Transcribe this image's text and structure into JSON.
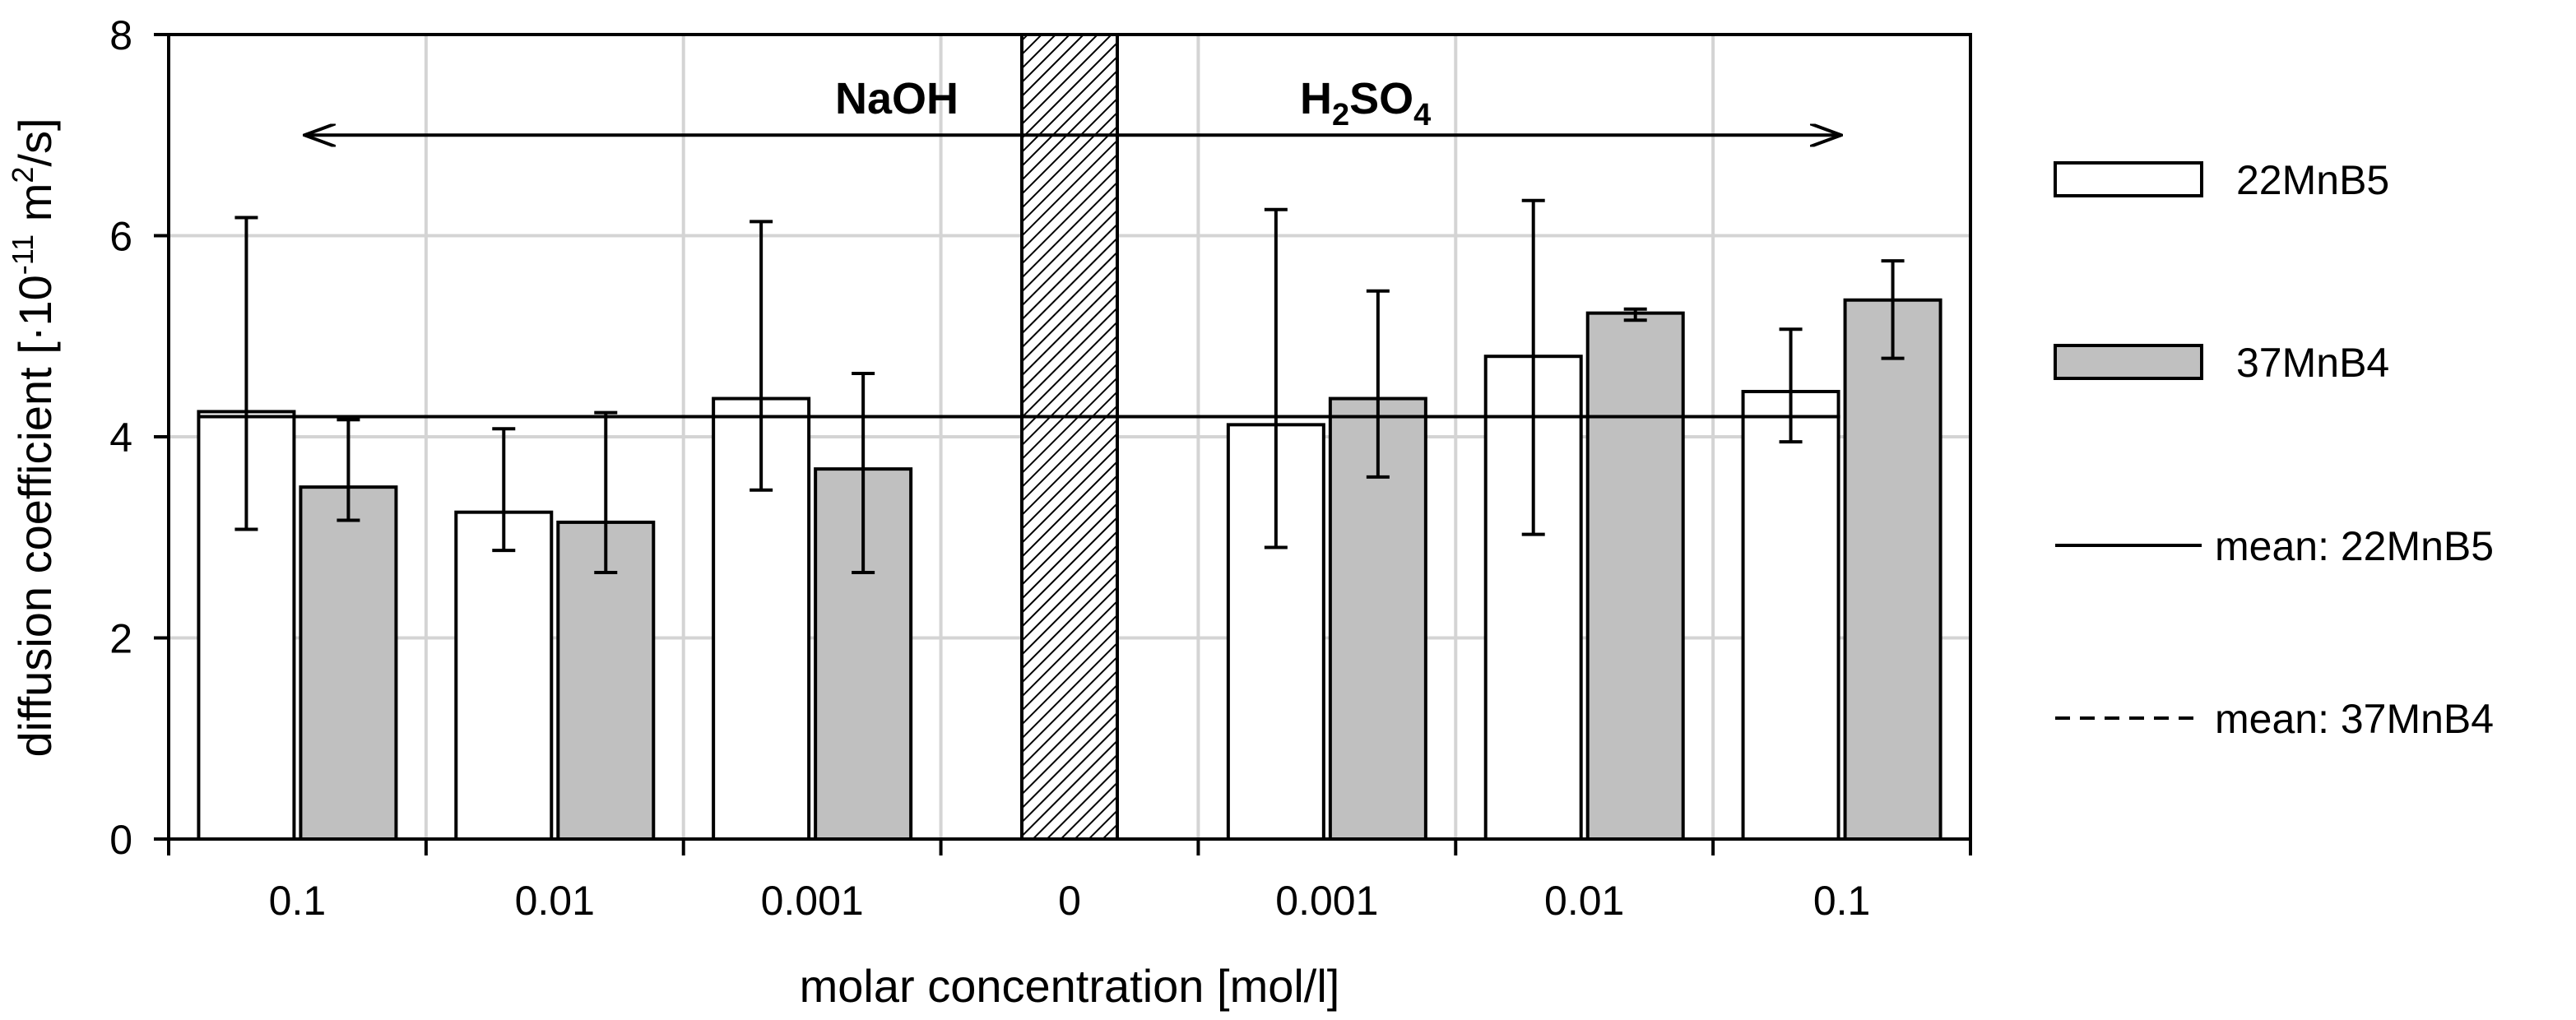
{
  "chart_data": {
    "type": "bar",
    "xlabel": "molar concentration [mol/l]",
    "ylabel_parts": {
      "main": "diffusion coefficient  [·10",
      "exp": "-11",
      "unit_mid": " m",
      "unit_exp": "2",
      "unit_end": "/s]"
    },
    "ylim": [
      0,
      8
    ],
    "yticks": [
      0,
      2,
      4,
      6,
      8
    ],
    "ytick_labels": [
      "0",
      "2",
      "4",
      "6",
      "8"
    ],
    "grid": true,
    "categories": [
      "0.1",
      "0.01",
      "0.001",
      "0",
      "0.001",
      "0.01",
      "0.1"
    ],
    "series": [
      {
        "name": "22MnB5",
        "color": "#ffffff",
        "values": [
          4.25,
          3.25,
          4.38,
          null,
          4.12,
          4.8,
          4.45
        ],
        "err_low": [
          3.08,
          2.87,
          3.47,
          null,
          2.9,
          3.03,
          3.95
        ],
        "err_high": [
          6.18,
          4.08,
          6.14,
          null,
          6.26,
          6.35,
          5.07
        ]
      },
      {
        "name": "37MnB4",
        "color": "#c0c0c0",
        "values": [
          3.5,
          3.15,
          3.68,
          null,
          4.38,
          5.23,
          5.36
        ],
        "err_low": [
          3.17,
          2.65,
          2.65,
          null,
          3.6,
          5.16,
          4.78
        ],
        "err_high": [
          4.17,
          4.24,
          4.63,
          null,
          5.45,
          5.27,
          5.75
        ]
      }
    ],
    "means": [
      {
        "name": "mean: 22MnB5",
        "value": 4.2,
        "style": "solid"
      },
      {
        "name": "mean: 37MnB4",
        "value": 4.2,
        "style": "dashed"
      }
    ],
    "regions": {
      "left_label": "NaOH",
      "right_label_parts": {
        "a": "H",
        "sub1": "2",
        "b": "SO",
        "sub2": "4"
      },
      "arrow_y": 7.0,
      "hatched_category": "0"
    },
    "legend": {
      "position": "right",
      "items": [
        {
          "label": "22MnB5",
          "kind": "bar",
          "color": "#ffffff"
        },
        {
          "label": "37MnB4",
          "kind": "bar",
          "color": "#c0c0c0"
        },
        {
          "label": "mean: 22MnB5",
          "kind": "line",
          "style": "solid"
        },
        {
          "label": "mean: 37MnB4",
          "kind": "line",
          "style": "dashed"
        }
      ]
    }
  }
}
